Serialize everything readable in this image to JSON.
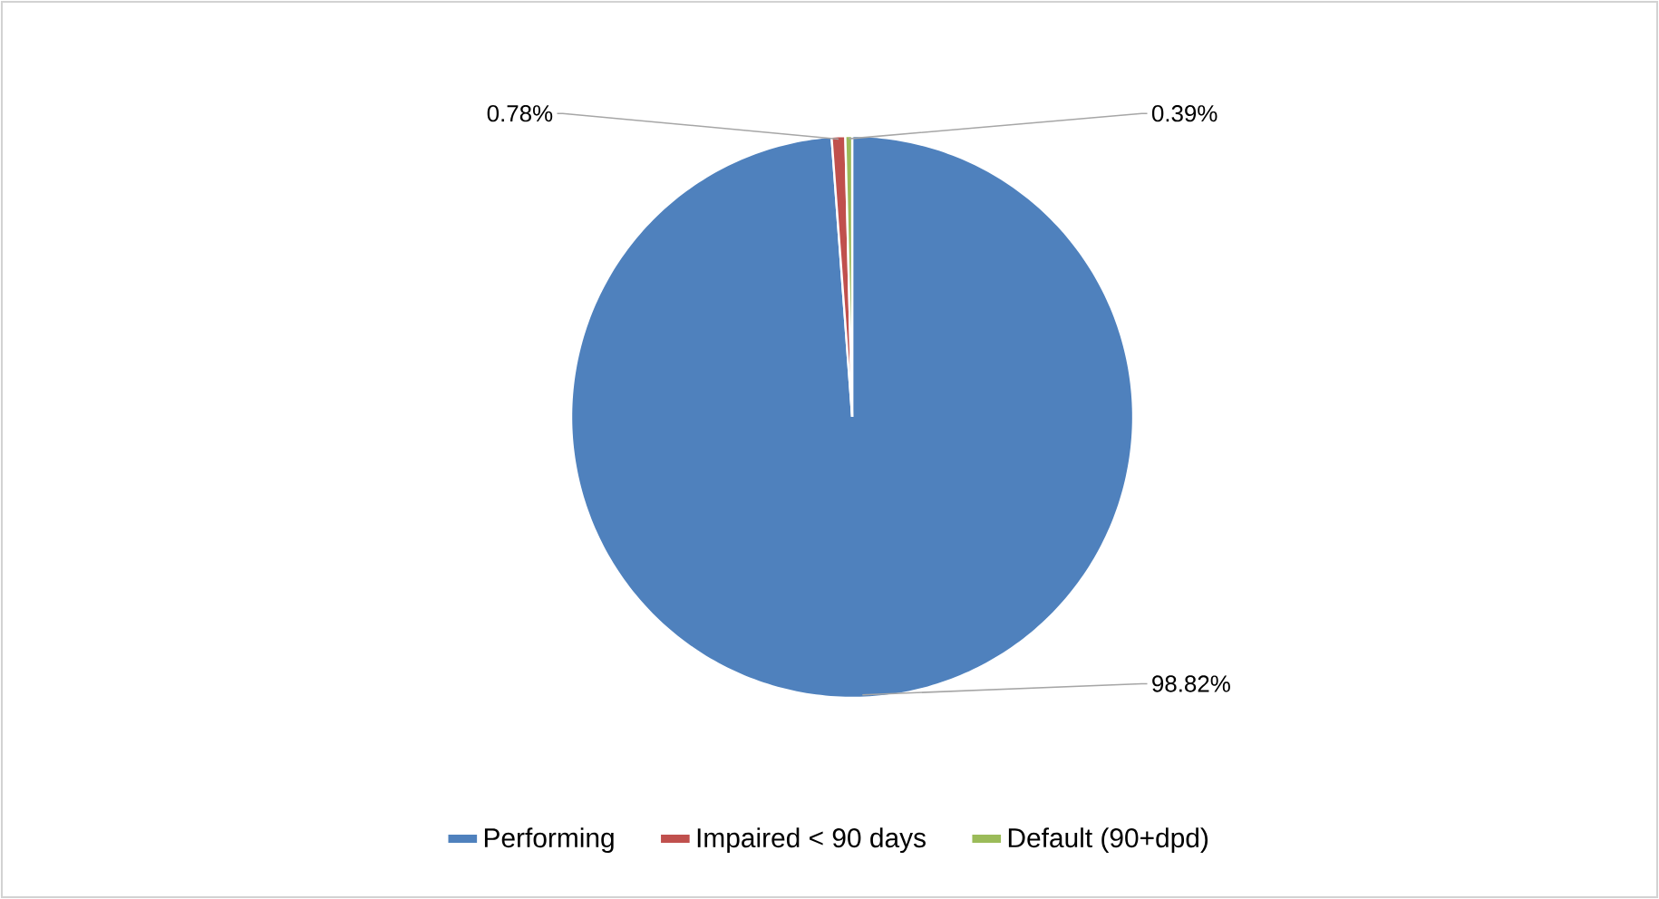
{
  "chart_data": {
    "type": "pie",
    "categories": [
      "Performing",
      "Impaired < 90 days",
      "Default (90+dpd)"
    ],
    "values": [
      98.82,
      0.78,
      0.39
    ],
    "colors": [
      "#4f81bd",
      "#c0504d",
      "#9bbb59"
    ],
    "value_labels": [
      "98.82%",
      "0.78%",
      "0.39%"
    ],
    "legend": "bottom"
  }
}
